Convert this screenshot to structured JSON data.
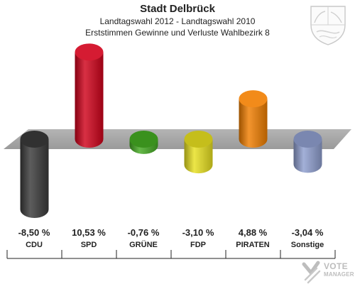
{
  "header": {
    "title": "Stadt Delbrück",
    "subtitle1": "Landtagswahl 2012 - Landtagswahl 2010",
    "subtitle2": "Erststimmen Gewinne und Verluste Wahlbezirk 8"
  },
  "brand": {
    "line1": "VOTE",
    "line2": "MANAGER",
    "icon": "vote-manager-logo-icon",
    "color": "#bdbdbd"
  },
  "crest": {
    "icon": "coat-of-arms-icon"
  },
  "chart_data": {
    "type": "bar",
    "title": "Stadt Delbrück",
    "subtitle": "Landtagswahl 2012 - Landtagswahl 2010 / Erststimmen Gewinne und Verluste Wahlbezirk 8",
    "xlabel": "",
    "ylabel": "",
    "ylim": [
      -10,
      14
    ],
    "grid": false,
    "legend": "none",
    "categories": [
      "CDU",
      "SPD",
      "GRÜNE",
      "FDP",
      "PIRATEN",
      "Sonstige"
    ],
    "values": [
      -8.5,
      10.53,
      -0.76,
      -3.1,
      4.88,
      -3.04
    ],
    "value_labels": [
      "-8,50 %",
      "10,53 %",
      "-0,76 %",
      "-3,10 %",
      "4,88 %",
      "-3,04 %"
    ],
    "colors": [
      "#3a3a3a",
      "#d0021b",
      "#44aa22",
      "#e8e020",
      "#f07e00",
      "#8f9fcf"
    ]
  }
}
